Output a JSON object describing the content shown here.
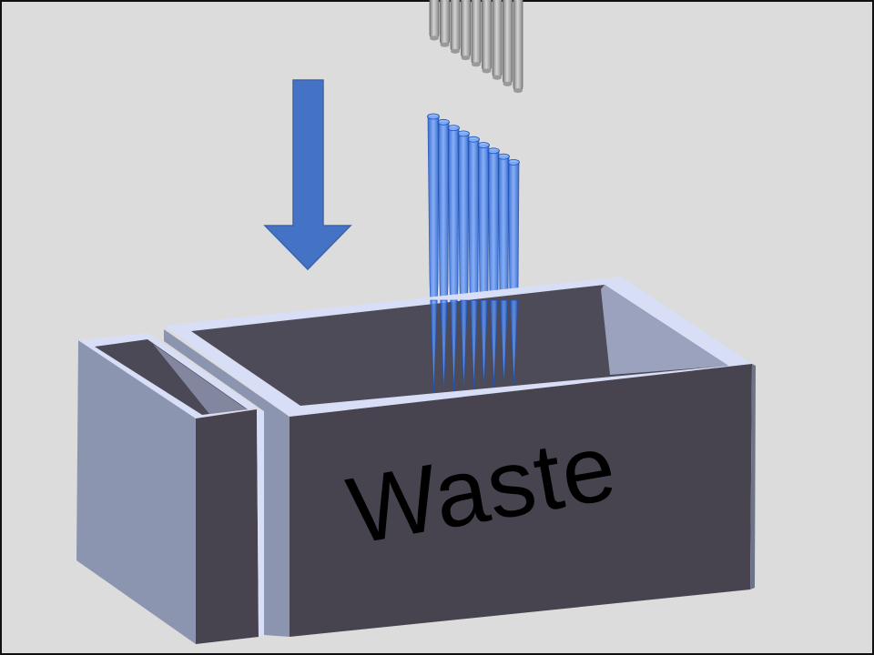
{
  "diagram": {
    "container_label": "Waste",
    "arrow_direction": "down"
  },
  "colors": {
    "background": "#dcdcdc",
    "frame": "#111111",
    "arrow": "#4472c4",
    "tips": "#2f6fe0",
    "bin_front": "#48444f",
    "bin_side": "#8e96b0",
    "bin_rim": "#d9dff8",
    "bin_inner": "#4e4b58",
    "pins": "#a6a6a6"
  },
  "components": {
    "upper_pins": 9,
    "pipette_tips": 9
  }
}
